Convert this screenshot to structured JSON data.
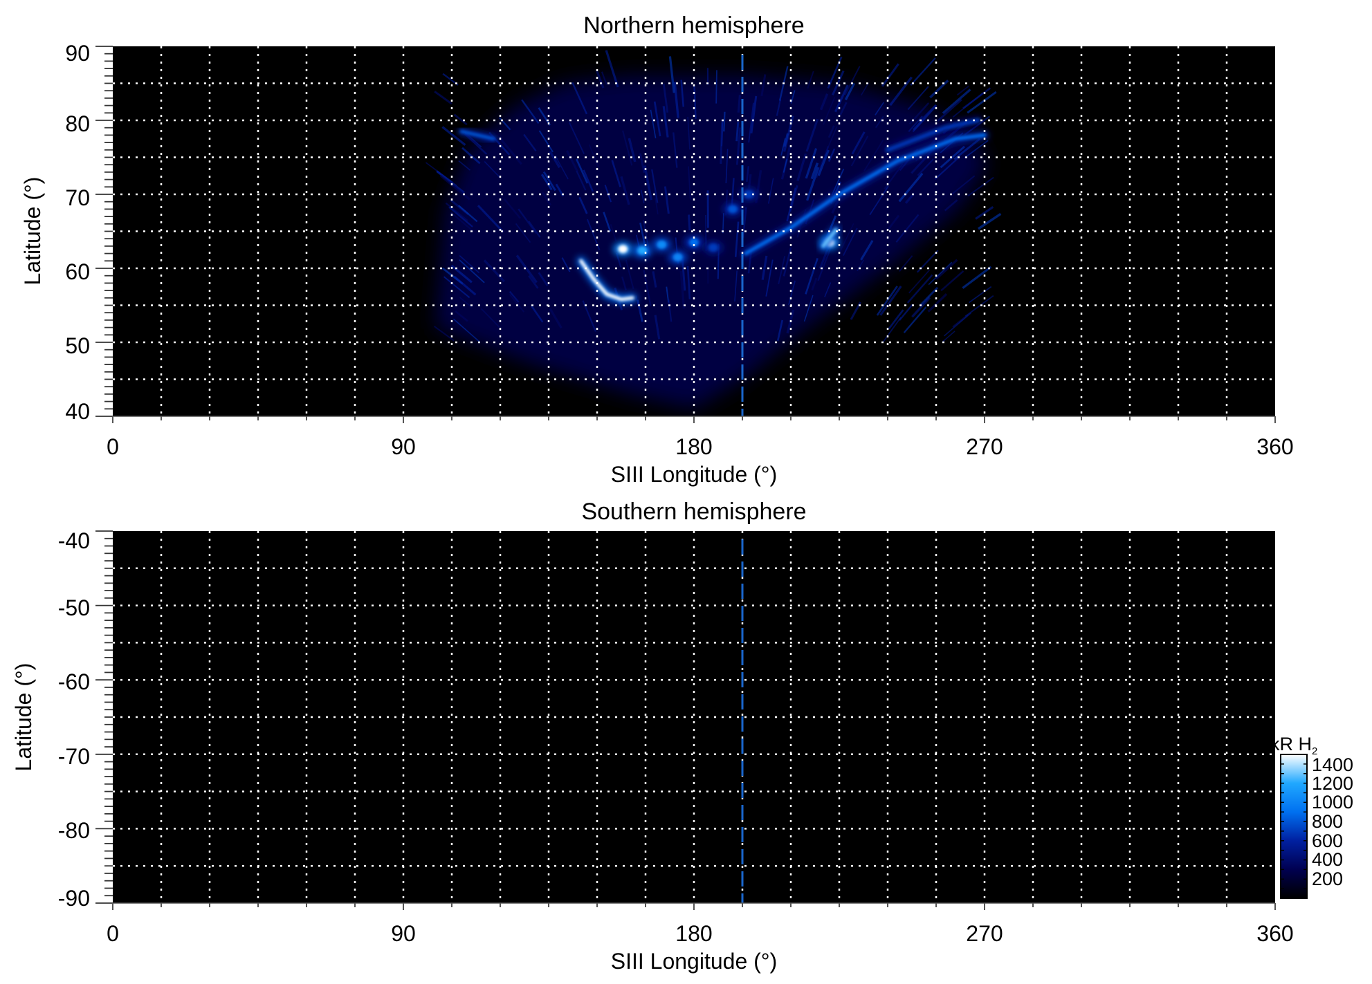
{
  "chart_data": [
    {
      "type": "heatmap",
      "title": "Northern hemisphere",
      "xlabel": "SIII Longitude (°)",
      "ylabel": "Latitude (°)",
      "xlim": [
        0,
        360
      ],
      "ylim": [
        40,
        90
      ],
      "xticks": [
        "0",
        "90",
        "180",
        "270",
        "360"
      ],
      "yticks": [
        "40",
        "50",
        "60",
        "70",
        "80",
        "90"
      ],
      "grid": {
        "on": true,
        "style": "dotted",
        "color": "#ffffff",
        "x_step": 15,
        "y_step": 5
      },
      "marker_longitude": 195,
      "marker_color": "#1a66cc",
      "emission_region": [
        [
          100,
          52
        ],
        [
          103,
          68
        ],
        [
          110,
          76
        ],
        [
          125,
          82
        ],
        [
          140,
          85
        ],
        [
          160,
          86
        ],
        [
          195,
          86
        ],
        [
          225,
          85
        ],
        [
          250,
          82
        ],
        [
          266,
          78
        ],
        [
          271,
          74
        ],
        [
          262,
          68
        ],
        [
          240,
          60
        ],
        [
          215,
          52
        ],
        [
          195,
          45
        ],
        [
          180,
          41
        ],
        [
          160,
          43
        ],
        [
          130,
          47
        ]
      ],
      "emission_background_kR": 250,
      "features": [
        {
          "kind": "spot",
          "lon": 158,
          "lat": 62.6,
          "kR": 1500
        },
        {
          "kind": "spot",
          "lon": 164,
          "lat": 62.4,
          "kR": 1200
        },
        {
          "kind": "spot",
          "lon": 170,
          "lat": 63.2,
          "kR": 1050
        },
        {
          "kind": "spot",
          "lon": 175,
          "lat": 61.5,
          "kR": 1000
        },
        {
          "kind": "spot",
          "lon": 180,
          "lat": 63.5,
          "kR": 900
        },
        {
          "kind": "spot",
          "lon": 186,
          "lat": 62.8,
          "kR": 700
        },
        {
          "kind": "spot",
          "lon": 192,
          "lat": 68,
          "kR": 800
        },
        {
          "kind": "spot",
          "lon": 197,
          "lat": 70,
          "kR": 700
        },
        {
          "kind": "spot",
          "lon": 222,
          "lat": 63.5,
          "kR": 1500
        },
        {
          "kind": "arc",
          "points": [
            [
              145,
              61
            ],
            [
              149,
              58.5
            ],
            [
              153,
              56.5
            ],
            [
              157.5,
              55.8
            ],
            [
              161,
              56
            ]
          ],
          "kR": 1500
        },
        {
          "kind": "arc",
          "points": [
            [
              196,
              62
            ],
            [
              210,
              65.5
            ],
            [
              225,
              70
            ],
            [
              243,
              74.5
            ],
            [
              261,
              77.5
            ],
            [
              270,
              78
            ]
          ],
          "kR": 900
        },
        {
          "kind": "arc",
          "points": [
            [
              220,
              63
            ],
            [
              224,
              65.2
            ]
          ],
          "kR": 1300
        },
        {
          "kind": "arc",
          "points": [
            [
              108,
              78.5
            ],
            [
              118,
              77.5
            ]
          ],
          "kR": 800
        },
        {
          "kind": "arc",
          "points": [
            [
              240,
              76
            ],
            [
              258,
              79
            ],
            [
              268,
              80
            ]
          ],
          "kR": 700
        }
      ]
    },
    {
      "type": "heatmap",
      "title": "Southern hemisphere",
      "xlabel": "SIII Longitude (°)",
      "ylabel": "Latitude (°)",
      "xlim": [
        0,
        360
      ],
      "ylim": [
        -90,
        -40
      ],
      "xticks": [
        "0",
        "90",
        "180",
        "270",
        "360"
      ],
      "yticks": [
        "-40",
        "-50",
        "-60",
        "-70",
        "-80",
        "-90"
      ],
      "grid": {
        "on": true,
        "style": "dotted",
        "color": "#ffffff",
        "x_step": 15,
        "y_step": 5
      },
      "marker_longitude": 195,
      "marker_color": "#1a66cc",
      "features": []
    }
  ],
  "colorbar": {
    "label_main": "kR H",
    "label_sub": "2",
    "range": [
      0,
      1500
    ],
    "ticks": [
      "200",
      "400",
      "600",
      "800",
      "1000",
      "1200",
      "1400"
    ],
    "colors": [
      "#000000",
      "#000050",
      "#0020a0",
      "#0070f0",
      "#20a8ff",
      "#ffffff"
    ]
  }
}
